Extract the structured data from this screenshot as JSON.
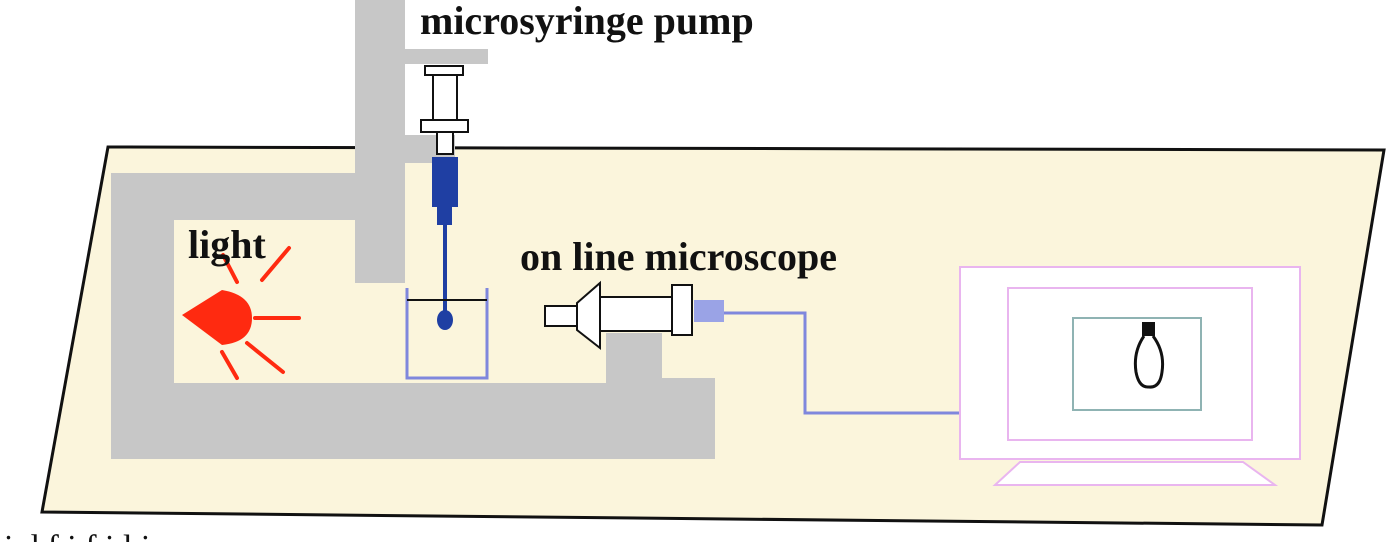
{
  "labels": {
    "pump": "microsyringe pump",
    "microscope": "on line microscope",
    "light": "light"
  },
  "caption": "i        d                 f     i     f   i   l    i",
  "colors": {
    "platform": "#fbf5dc",
    "frame": "#c7c7c7",
    "syringe_blue": "#1f3fa3",
    "light_red": "#ff2a10",
    "cable": "#7f87dd",
    "monitor_outline": "#e9b5ef",
    "screen_outline": "#8fb3b3",
    "beaker": "#7f87dd"
  },
  "icons": {
    "light_source": "light-bulb-icon",
    "monitor_image": "droplet-on-needle-icon"
  }
}
